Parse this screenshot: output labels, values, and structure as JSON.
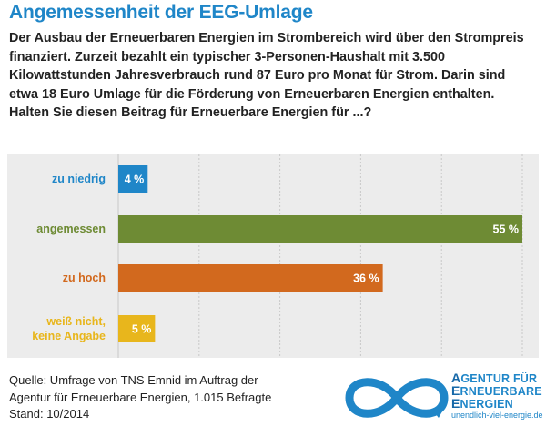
{
  "header": {
    "title": "Angemessenheit der EEG-Umlage",
    "subtitle": "Der Ausbau der Erneuerbaren Energien im Strombereich wird über den Strompreis finanziert. Zurzeit bezahlt ein typischer 3-Personen-Haushalt mit 3.500 Kilowattstunden Jahresverbrauch rund 87 Euro pro Monat für Strom. Darin sind etwa 18 Euro Umlage für die Förderung von Erneuerbaren Energien enthalten. Halten Sie diesen Beitrag für Erneuerbare Energien für ...?"
  },
  "chart_data": {
    "type": "bar",
    "orientation": "horizontal",
    "categories": [
      "zu niedrig",
      "angemessen",
      "zu hoch",
      "weiß nicht, keine Angabe"
    ],
    "category_lines": [
      [
        "zu niedrig"
      ],
      [
        "angemessen"
      ],
      [
        "zu hoch"
      ],
      [
        "weiß nicht,",
        "keine Angabe"
      ]
    ],
    "values": [
      4,
      55,
      36,
      5
    ],
    "value_labels": [
      "4 %",
      "55 %",
      "36 %",
      "5 %"
    ],
    "colors": [
      "#1f86c8",
      "#6e8b34",
      "#d2691e",
      "#e8b61c"
    ],
    "xlim": [
      0,
      55
    ],
    "unit": "%",
    "grid": true,
    "background": "#ececec"
  },
  "footer": {
    "source_lines": [
      "Quelle: Umfrage von TNS Emnid im Auftrag der",
      "Agentur für Erneuerbare Energien, 1.015 Befragte",
      "Stand: 10/2014"
    ]
  },
  "logo": {
    "line1_cap": "A",
    "line1_rest": "GENTUR FÜR",
    "line2_cap": "E",
    "line2_rest": "RNEUERBARE",
    "line3_cap": "E",
    "line3_rest": "NERGIEN",
    "url": "unendlich-viel-energie.de",
    "icon": "infinity-logo-icon",
    "color": "#1f86c8"
  }
}
